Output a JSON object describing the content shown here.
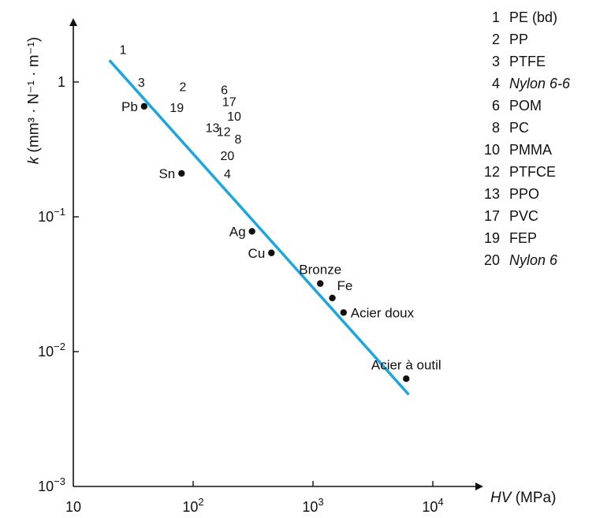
{
  "chart_data": {
    "type": "scatter",
    "xscale": "log",
    "yscale": "log",
    "xlim": [
      10,
      20000
    ],
    "ylim": [
      0.001,
      3
    ],
    "xlabel": "HV",
    "xlabel_unit": "(MPa)",
    "ylabel_var": "k",
    "ylabel_unit": "(mm³ · N⁻¹ · m⁻¹)",
    "x_ticks": [
      {
        "value": 10,
        "base": "10",
        "exp": ""
      },
      {
        "value": 100,
        "base": "10",
        "exp": "2"
      },
      {
        "value": 1000,
        "base": "10",
        "exp": "3"
      },
      {
        "value": 10000,
        "base": "10",
        "exp": "4"
      }
    ],
    "y_ticks": [
      {
        "value": 1,
        "base": "1",
        "exp": ""
      },
      {
        "value": 0.1,
        "base": "10",
        "exp": "−1"
      },
      {
        "value": 0.01,
        "base": "10",
        "exp": "−2"
      },
      {
        "value": 0.001,
        "base": "10",
        "exp": "−3"
      }
    ],
    "fit_line": {
      "color": "#1aa6e0",
      "points": [
        [
          20,
          1.45
        ],
        [
          6300,
          0.0048
        ]
      ]
    },
    "metals": [
      {
        "label": "Pb",
        "x": 39,
        "y": 0.66,
        "label_pos": "left"
      },
      {
        "label": "Sn",
        "x": 80,
        "y": 0.21,
        "label_pos": "left"
      },
      {
        "label": "Ag",
        "x": 310,
        "y": 0.078,
        "label_pos": "left"
      },
      {
        "label": "Cu",
        "x": 450,
        "y": 0.054,
        "label_pos": "left"
      },
      {
        "label": "Bronze",
        "x": 1150,
        "y": 0.032,
        "label_pos": "above"
      },
      {
        "label": "Fe",
        "x": 1450,
        "y": 0.025,
        "label_pos": "above-right"
      },
      {
        "label": "Acier doux",
        "x": 1800,
        "y": 0.0195,
        "label_pos": "right"
      },
      {
        "label": "Acier à outil",
        "x": 6000,
        "y": 0.0063,
        "label_pos": "above"
      }
    ],
    "polymers": [
      {
        "label": "1",
        "x": 26,
        "y": 1.75
      },
      {
        "label": "3",
        "x": 37,
        "y": 1.0
      },
      {
        "label": "2",
        "x": 82,
        "y": 0.93
      },
      {
        "label": "19",
        "x": 73,
        "y": 0.65
      },
      {
        "label": "6",
        "x": 182,
        "y": 0.88
      },
      {
        "label": "17",
        "x": 200,
        "y": 0.72
      },
      {
        "label": "10",
        "x": 220,
        "y": 0.56
      },
      {
        "label": "13",
        "x": 145,
        "y": 0.46
      },
      {
        "label": "12",
        "x": 180,
        "y": 0.43
      },
      {
        "label": "8",
        "x": 237,
        "y": 0.38
      },
      {
        "label": "20",
        "x": 193,
        "y": 0.285
      },
      {
        "label": "4",
        "x": 193,
        "y": 0.21
      }
    ]
  },
  "legend": [
    {
      "num": "1",
      "name": "PE (bd)",
      "italic": false
    },
    {
      "num": "2",
      "name": "PP",
      "italic": false
    },
    {
      "num": "3",
      "name": "PTFE",
      "italic": false
    },
    {
      "num": "4",
      "name": "Nylon 6-6",
      "italic": true
    },
    {
      "num": "6",
      "name": "POM",
      "italic": false
    },
    {
      "num": "8",
      "name": "PC",
      "italic": false
    },
    {
      "num": "10",
      "name": "PMMA",
      "italic": false
    },
    {
      "num": "12",
      "name": "PTFCE",
      "italic": false
    },
    {
      "num": "13",
      "name": "PPO",
      "italic": false
    },
    {
      "num": "17",
      "name": "PVC",
      "italic": false
    },
    {
      "num": "19",
      "name": "FEP",
      "italic": false
    },
    {
      "num": "20",
      "name": "Nylon 6",
      "italic": true
    }
  ]
}
